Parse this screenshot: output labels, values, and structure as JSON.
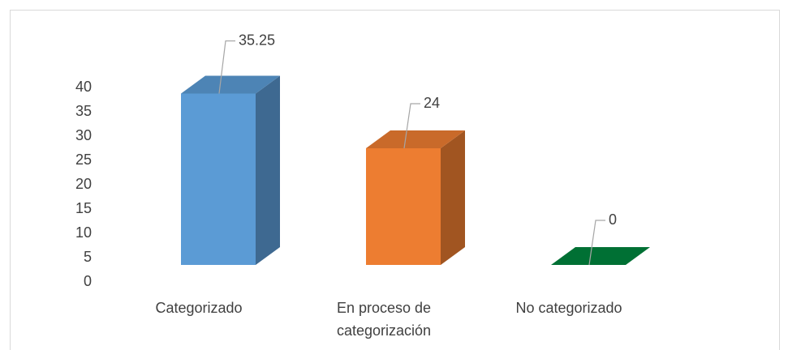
{
  "chart_data": {
    "type": "bar3d",
    "categories": [
      "Categorizado",
      "En proceso de categorización",
      "No categorizado"
    ],
    "values": [
      35.25,
      24,
      0
    ],
    "colors": [
      "#5b9bd5",
      "#ed7d31",
      "#00843d"
    ],
    "ylim": [
      0,
      40
    ],
    "yticks": [
      0,
      5,
      10,
      15,
      20,
      25,
      30,
      35,
      40
    ]
  }
}
